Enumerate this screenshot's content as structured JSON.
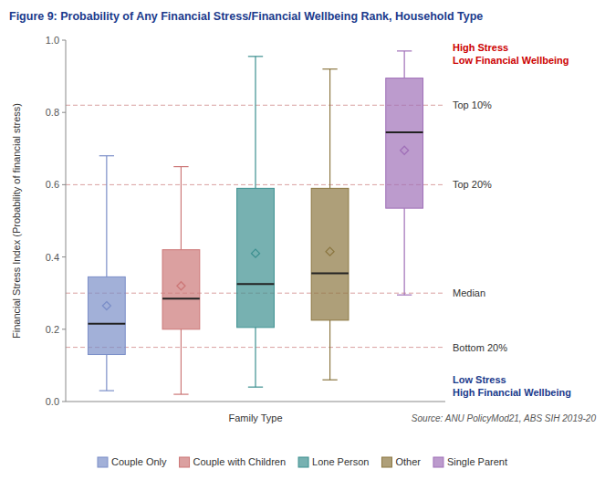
{
  "chart_data": {
    "type": "box",
    "title": "Figure 9: Probability of Any Financial Stress/Financial Wellbeing Rank, Household Type",
    "x_label": "Family Type",
    "y_label": "Financial Stress Index (Probability of financial stress)",
    "ylim": [
      0.0,
      1.0
    ],
    "yticks": [
      {
        "value": 0.0,
        "label": "0.0"
      },
      0.2,
      0.4,
      0.6,
      0.8,
      {
        "value": 1.0,
        "label": "1.0"
      }
    ],
    "grid": false,
    "legend": "bottom",
    "tick_labels": "y",
    "series": [
      {
        "name": "Couple Only",
        "color": "#7b8ec8",
        "whisker_low": 0.03,
        "q1": 0.13,
        "median": 0.215,
        "q3": 0.345,
        "whisker_high": 0.68,
        "mean": 0.265
      },
      {
        "name": "Couple with Children",
        "color": "#cc7777",
        "whisker_low": 0.02,
        "q1": 0.2,
        "median": 0.285,
        "q3": 0.42,
        "whisker_high": 0.65,
        "mean": 0.32
      },
      {
        "name": "Lone Person",
        "color": "#3d9090",
        "whisker_low": 0.04,
        "q1": 0.205,
        "median": 0.325,
        "q3": 0.59,
        "whisker_high": 0.955,
        "mean": 0.41
      },
      {
        "name": "Other",
        "color": "#8b7640",
        "whisker_low": 0.06,
        "q1": 0.225,
        "median": 0.355,
        "q3": 0.59,
        "whisker_high": 0.92,
        "mean": 0.415
      },
      {
        "name": "Single Parent",
        "color": "#a070b8",
        "whisker_low": 0.295,
        "q1": 0.535,
        "median": 0.745,
        "q3": 0.895,
        "whisker_high": 0.97,
        "mean": 0.695
      }
    ],
    "reference_lines": [
      {
        "value": 0.82,
        "label": "Top 10%",
        "color": "#d9a0a0"
      },
      {
        "value": 0.6,
        "label": "Top 20%",
        "color": "#d9a0a0"
      },
      {
        "value": 0.3,
        "label": "Median",
        "color": "#d9a0a0"
      },
      {
        "value": 0.15,
        "label": "Bottom 20%",
        "color": "#d9a0a0"
      }
    ],
    "annotations": [
      {
        "text": "High Stress\nLow Financial Wellbeing",
        "color": "#cc0000"
      },
      {
        "text": "Low Stress\nHigh Financial Wellbeing",
        "color": "#1a3a8c"
      }
    ],
    "source": "Source: ANU PolicyMod21, ABS SIH 2019-20"
  }
}
